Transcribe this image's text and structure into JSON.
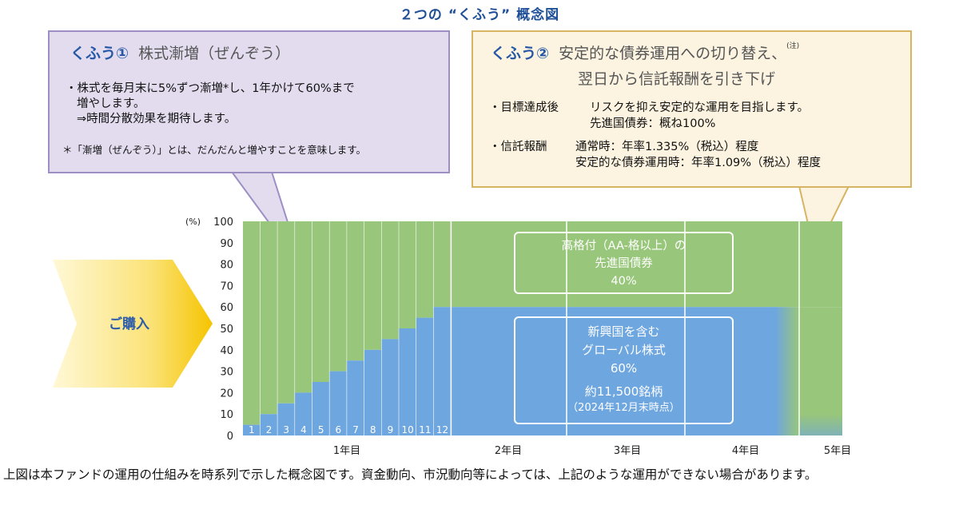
{
  "title": "２つの “くふう” 概念図",
  "kufu1": {
    "lead": "くふう①",
    "heading": "株式漸増（ぜんぞう）",
    "line1": "・株式を毎月末に5%ずつ漸増*し、1年かけて60%まで",
    "line2": "増やします。",
    "line3": "⇒時間分散効果を期待します。",
    "note": "＊「漸増（ぜんぞう）」とは、だんだんと増やすことを意味します。"
  },
  "kufu2": {
    "lead": "くふう②",
    "heading1": "安定的な債券運用への切り替え、",
    "note_mark": "(注)",
    "heading2": "翌日から信託報酬を引き下げ",
    "label1": "・目標達成後",
    "line1": "リスクを抑え安定的な運用を目指します。",
    "line2": "先進国債券：概ね100%",
    "label2": "・信託報酬",
    "line3": "通常時：年率1.335%（税込）程度",
    "line4": "安定的な債券運用時：年率1.09%（税込）程度"
  },
  "purchase": "ご購入",
  "chart_data": {
    "type": "bar",
    "stacked": true,
    "ylabel": "(%)",
    "ylim": [
      0,
      100
    ],
    "yticks": [
      0,
      10,
      20,
      30,
      40,
      50,
      60,
      70,
      80,
      90,
      100
    ],
    "month_labels": [
      "1",
      "2",
      "3",
      "4",
      "5",
      "6",
      "7",
      "8",
      "9",
      "10",
      "11",
      "12"
    ],
    "year_labels": [
      "1年目",
      "2年目",
      "3年目",
      "4年目",
      "5年目"
    ],
    "series": [
      {
        "name": "新興国を含むグローバル株式",
        "color": "#6ea6e0",
        "values": [
          5,
          10,
          15,
          20,
          25,
          30,
          35,
          40,
          45,
          50,
          55,
          60
        ],
        "after_year1": 60
      },
      {
        "name": "高格付（AA-格以上）の先進国債券",
        "color": "#98c67a",
        "values": [
          95,
          90,
          85,
          80,
          75,
          70,
          65,
          60,
          55,
          50,
          45,
          40
        ],
        "after_year1": 40
      }
    ],
    "bond_box": {
      "line1": "高格付（AA-格以上）の",
      "line2": "先進国債券",
      "line3": "40%"
    },
    "stock_box": {
      "line1": "新興国を含む",
      "line2": "グローバル株式",
      "line3": "60%",
      "line4": "約11,500銘柄",
      "line5": "（2024年12月末時点）"
    }
  },
  "footer": "上図は本ファンドの運用の仕組みを時系列で示した概念図です。資金動向、市況動向等によっては、上記のような運用ができない場合があります。"
}
